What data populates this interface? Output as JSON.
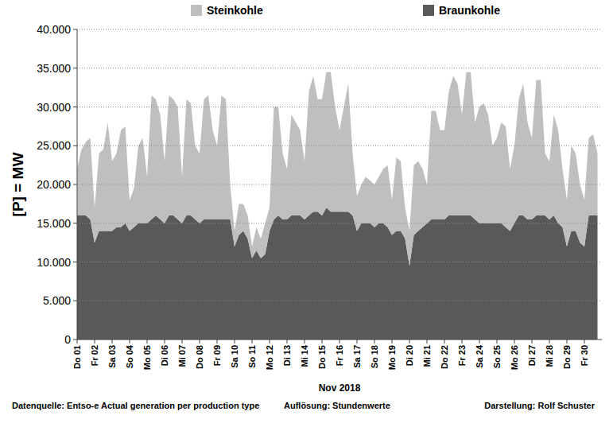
{
  "chart_data": {
    "type": "area",
    "stacked": true,
    "grid": true,
    "legend": "top",
    "ylabel": "[P] = MW",
    "xlabel": "Nov 2018",
    "footer": [
      "Datenquelle: Entso-e  Actual generation per production type",
      "Auflösung: Stundenwerte",
      "Darstellung: Rolf Schuster"
    ],
    "ylim": [
      0,
      40000
    ],
    "yticks": [
      {
        "value": 0,
        "label": "0"
      },
      {
        "value": 5000,
        "label": "5.000"
      },
      {
        "value": 10000,
        "label": "10.000"
      },
      {
        "value": 15000,
        "label": "15.000"
      },
      {
        "value": 20000,
        "label": "20.000"
      },
      {
        "value": 25000,
        "label": "25.000"
      },
      {
        "value": 30000,
        "label": "30.000"
      },
      {
        "value": 35000,
        "label": "35.000"
      },
      {
        "value": 40000,
        "label": "40.000"
      }
    ],
    "categories": [
      "Do 01",
      null,
      null,
      null,
      "Fr 02",
      null,
      null,
      null,
      "Sa 03",
      null,
      null,
      null,
      "So 04",
      null,
      null,
      null,
      "Mo 05",
      null,
      null,
      null,
      "Di 06",
      null,
      null,
      null,
      "Mi 07",
      null,
      null,
      null,
      "Do 08",
      null,
      null,
      null,
      "Fr 09",
      null,
      null,
      null,
      "Sa 10",
      null,
      null,
      null,
      "So 11",
      null,
      null,
      null,
      "Mo 12",
      null,
      null,
      null,
      "Di 13",
      null,
      null,
      null,
      "Mi 14",
      null,
      null,
      null,
      "Do 15",
      null,
      null,
      null,
      "Fr 16",
      null,
      null,
      null,
      "Sa 17",
      null,
      null,
      null,
      "So 18",
      null,
      null,
      null,
      "Mo 19",
      null,
      null,
      null,
      "Di 20",
      null,
      null,
      null,
      "Mi 21",
      null,
      null,
      null,
      "Do 22",
      null,
      null,
      null,
      "Fr 23",
      null,
      null,
      null,
      "Sa 24",
      null,
      null,
      null,
      "So 25",
      null,
      null,
      null,
      "Mo 26",
      null,
      null,
      null,
      "Di 27",
      null,
      null,
      null,
      "Mi 28",
      null,
      null,
      null,
      "Do 29",
      null,
      null,
      null,
      "Fr 30",
      null,
      null,
      null
    ],
    "series": [
      {
        "name": "Braunkohle",
        "color": "#595959",
        "values": [
          16000,
          16000,
          16000,
          15500,
          12500,
          14000,
          14000,
          14000,
          14000,
          14500,
          14500,
          15000,
          14000,
          14500,
          15000,
          15000,
          15000,
          15500,
          16000,
          15500,
          15000,
          16000,
          16000,
          15500,
          15000,
          16000,
          16000,
          15500,
          15000,
          15500,
          15500,
          15500,
          15500,
          15500,
          15500,
          15500,
          12000,
          13500,
          14000,
          13000,
          10500,
          11500,
          10500,
          11000,
          14000,
          15500,
          16000,
          15500,
          15500,
          16000,
          16000,
          16000,
          15500,
          16000,
          16500,
          16500,
          16000,
          17000,
          16500,
          16500,
          16500,
          16500,
          16500,
          16000,
          14000,
          15000,
          15000,
          15000,
          14500,
          15000,
          15000,
          14500,
          13500,
          14000,
          14000,
          13000,
          9500,
          13500,
          14000,
          14500,
          15000,
          15500,
          15500,
          15500,
          15500,
          16000,
          16000,
          16000,
          16000,
          16000,
          16000,
          15500,
          15000,
          15000,
          15000,
          15000,
          15000,
          15000,
          14500,
          14000,
          15000,
          16000,
          16000,
          15500,
          15500,
          16000,
          16000,
          16000,
          15500,
          16000,
          15000,
          14500,
          12000,
          14000,
          14000,
          12500,
          12000,
          16000,
          16000,
          16000
        ]
      },
      {
        "name": "Steinkohle",
        "color": "#bfbfbf",
        "values": [
          6000,
          8500,
          9500,
          10500,
          4500,
          10000,
          10500,
          14000,
          9000,
          9500,
          12500,
          12500,
          4000,
          5000,
          10000,
          11000,
          6000,
          16000,
          15000,
          13500,
          8000,
          15500,
          15000,
          14500,
          6000,
          15000,
          14500,
          9500,
          9000,
          15500,
          16000,
          11500,
          9500,
          16000,
          15500,
          4500,
          2000,
          4000,
          3500,
          3000,
          1500,
          3000,
          2500,
          4000,
          3000,
          14500,
          14000,
          8500,
          6500,
          13000,
          12000,
          11000,
          7500,
          16000,
          17500,
          14500,
          15000,
          17500,
          18000,
          13500,
          10500,
          13500,
          16500,
          8000,
          4500,
          5000,
          6000,
          5500,
          5500,
          6000,
          7000,
          8000,
          4500,
          9500,
          9000,
          4000,
          4500,
          9000,
          9000,
          7500,
          5000,
          14000,
          14000,
          11500,
          11500,
          16000,
          18000,
          17000,
          13000,
          18500,
          18500,
          12500,
          15000,
          15500,
          14000,
          10000,
          11000,
          13000,
          13000,
          8000,
          10000,
          15000,
          17000,
          12500,
          10500,
          17500,
          17500,
          8000,
          7500,
          13000,
          12000,
          7500,
          6000,
          11000,
          10000,
          7500,
          6000,
          10000,
          10500,
          8000
        ]
      }
    ]
  }
}
